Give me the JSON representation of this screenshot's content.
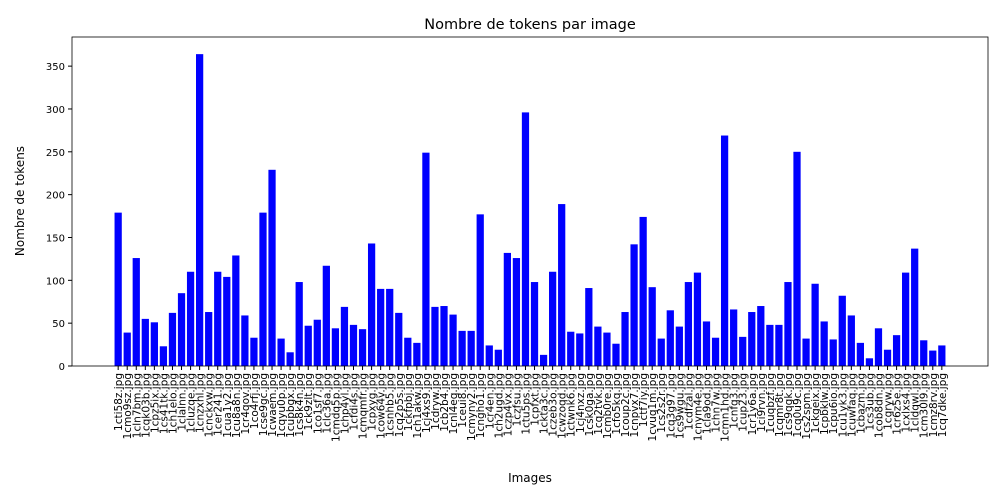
{
  "chart_data": {
    "type": "bar",
    "title": "Nombre de tokens par image",
    "xlabel": "Images",
    "ylabel": "Nombre de tokens",
    "color": "#0000ff",
    "categories": [
      "1cti58z.jpg",
      "1cmo9sz.jpg",
      "1cln7bm.jpg",
      "1cqk03b.jpg",
      "1cpz5ix.jpg",
      "1cs41tk.jpg",
      "1ch1elo.jpg",
      "1clalnn.jpg",
      "1cluzqe.jpg",
      "1cnzxhl.jpg",
      "1cnckxw.jpg",
      "1cer241.jpg",
      "1cua1y2.jpg",
      "1cu8a8n.jpg",
      "1cr4qov.jpg",
      "1co4rfj.jpg",
      "1cse9gc.jpg",
      "1cwaem.jpg",
      "1cqyu0p.jpg",
      "1cupbgx.jpg",
      "1cs8k4n.jpg",
      "1ck9zlt.jpg",
      "1co1sf7.jpg",
      "1clc36a.jpg",
      "1cmdq5p.jpg",
      "1chp4yl.jpg",
      "1cfdi4s.jpg",
      "1cmqmfr.jpg",
      "1cpxyg.jpg",
      "1cow64v.jpg",
      "1csnhb5.jpg",
      "1cq2p5s.jpg",
      "1ckfpbj.jpg",
      "1ch1akw.jpg",
      "1cj4xs9.jpg",
      "1cdryw.jpg",
      "1cb2b4.jpg",
      "1cnl4eq.jpg",
      "1ceui8.jpg",
      "1cmyny2.jpg",
      "1cngho1.jpg",
      "1cr4en.jpg",
      "1ch2ugd.jpg",
      "1czp4vx.jpg",
      "1czfsu.jpg",
      "1ctu5ps.jpg",
      "1cpfxt.jpg",
      "1ckta3c.jpg",
      "1czeb3o.jpg",
      "1cwzoqd.jpg",
      "1ctwnk6.jpg",
      "1cj4nxz.jpg",
      "1csk0ga.jpg",
      "1cq2tvk.jpg",
      "1cmb0re.jpg",
      "1cfo5kq.jpg",
      "1coup2c.jpg",
      "1cnpvx7.jpg",
      "1ctf7iy.jpg",
      "1cvuq1m.jpg",
      "1cs2s2r.jpg",
      "1cq3g97.jpg",
      "1cs9wgu.jpg",
      "1cdfzal.jpg",
      "1cnym4e.jpg",
      "1cla9od.jpg",
      "1chn7w.jpg",
      "1cmn1hd.jpg",
      "1cnfq3.jpg",
      "1cup23.jpg",
      "1cr1y6a.jpg",
      "1ci9rvn.jpg",
      "1cuqbzf.jpg",
      "1cqmr8t.jpg",
      "1cs9qgk.jpg",
      "1cq0u9c.jpg",
      "1cs2spm.jpg",
      "1ckgeix.jpg",
      "1cpbklw.jpg",
      "1cpu6io.jpg",
      "1cu1yk3.jpg",
      "1cuwfaq.jpg",
      "1cbazm.jpg",
      "1cs3ub.jpg",
      "1cob8dn.jpg",
      "1cqryw.jpg",
      "1cr6z5e.jpg",
      "1cxlxs4.jpg",
      "1cldqwl.jpg",
      "1cm30l9.jpg",
      "1cmz8rv.jpg",
      "1cq7dke.jpg"
    ],
    "values": [
      179,
      39,
      126,
      55,
      51,
      23,
      62,
      85,
      110,
      364,
      63,
      110,
      104,
      129,
      59,
      33,
      179,
      229,
      32,
      16,
      98,
      47,
      54,
      117,
      44,
      69,
      48,
      43,
      143,
      90,
      90,
      62,
      33,
      27,
      249,
      69,
      70,
      60,
      41,
      41,
      177,
      24,
      19,
      132,
      126,
      296,
      98,
      13,
      110,
      189,
      40,
      38,
      91,
      46,
      39,
      26,
      63,
      142,
      174,
      92,
      32,
      65,
      46,
      98,
      109,
      52,
      33,
      269,
      66,
      34,
      63,
      70,
      48,
      48,
      98,
      250,
      32,
      96,
      52,
      31,
      82,
      59,
      27,
      9,
      44,
      19,
      36,
      109,
      137,
      30,
      18,
      24
    ],
    "ylim": [
      0,
      384
    ],
    "yticks": [
      0,
      50,
      100,
      150,
      200,
      250,
      300,
      350
    ]
  }
}
